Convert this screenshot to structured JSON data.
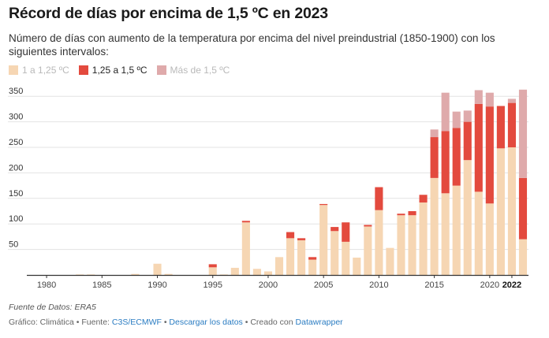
{
  "header": {
    "title": "Récord de días por encima de 1,5 ºC en 2023",
    "subtitle": "Número de días con aumento de la temperatura por encima del nivel preindustrial (1850-1900) con los siguientes intervalos:"
  },
  "legend": [
    {
      "label": "1 a 1,25 ºC",
      "color": "#f6d6b3"
    },
    {
      "label": "1,25 a 1,5 ºC",
      "color": "#e34a3e"
    },
    {
      "label": "Más de 1,5 ºC",
      "color": "#dfaaab"
    }
  ],
  "footer": {
    "source_note": "Fuente de Datos: ERA5",
    "credit_prefix": "Gráfico: Climática • Fuente:",
    "source_link": "C3S/ECMWF",
    "separator": "•",
    "download_link": "Descargar los datos",
    "created_with": "• Creado con",
    "tool_link": "Datawrapper"
  },
  "chart_data": {
    "type": "bar",
    "stacked": true,
    "x": [
      1979,
      1980,
      1981,
      1982,
      1983,
      1984,
      1985,
      1986,
      1987,
      1988,
      1989,
      1990,
      1991,
      1992,
      1993,
      1994,
      1995,
      1996,
      1997,
      1998,
      1999,
      2000,
      2001,
      2002,
      2003,
      2004,
      2005,
      2006,
      2007,
      2008,
      2009,
      2010,
      2011,
      2012,
      2013,
      2014,
      2015,
      2016,
      2017,
      2018,
      2019,
      2020,
      2021,
      2022,
      2023
    ],
    "series": [
      {
        "name": "1 a 1,25 ºC",
        "color": "#f6d6b3",
        "values": [
          0,
          0,
          0,
          0,
          1,
          1,
          0,
          0,
          0,
          2,
          0,
          22,
          2,
          0,
          0,
          0,
          15,
          1,
          14,
          103,
          12,
          7,
          35,
          72,
          68,
          30,
          137,
          86,
          65,
          34,
          95,
          127,
          53,
          117,
          117,
          142,
          190,
          160,
          175,
          225,
          163,
          140,
          248,
          250,
          70
        ]
      },
      {
        "name": "1,25 a 1,5 ºC",
        "color": "#e34a3e",
        "values": [
          0,
          0,
          0,
          0,
          0,
          0,
          0,
          0,
          0,
          0,
          0,
          0,
          0,
          0,
          0,
          0,
          6,
          0,
          0,
          3,
          0,
          0,
          0,
          12,
          4,
          5,
          2,
          8,
          38,
          0,
          3,
          45,
          0,
          3,
          8,
          15,
          80,
          122,
          113,
          75,
          172,
          190,
          83,
          87,
          120
        ]
      },
      {
        "name": "Más de 1,5 ºC",
        "color": "#dfaaab",
        "values": [
          0,
          0,
          0,
          0,
          0,
          0,
          0,
          0,
          0,
          0,
          0,
          0,
          0,
          0,
          0,
          0,
          0,
          0,
          0,
          0,
          0,
          0,
          0,
          0,
          0,
          0,
          0,
          0,
          0,
          0,
          0,
          0,
          0,
          0,
          0,
          0,
          15,
          75,
          32,
          22,
          27,
          27,
          0,
          8,
          173
        ]
      }
    ],
    "xticks": [
      1980,
      1985,
      1990,
      1995,
      2000,
      2005,
      2010,
      2015,
      2020,
      2022
    ],
    "xtick_bold": 2022,
    "yticks": [
      50,
      100,
      150,
      200,
      250,
      300,
      350
    ],
    "ylim": [
      0,
      375
    ],
    "grid": true
  }
}
